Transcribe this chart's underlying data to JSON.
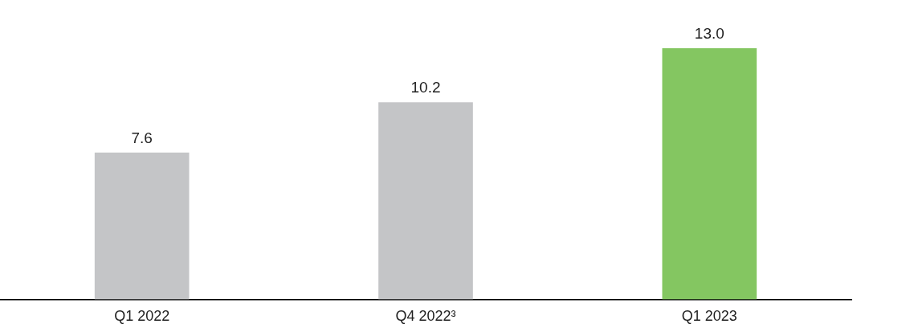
{
  "chart_data": {
    "type": "bar",
    "categories": [
      "Q1 2022",
      "Q4 2022³",
      "Q1 2023"
    ],
    "values": [
      7.6,
      10.2,
      13.0
    ],
    "value_labels": [
      "7.6",
      "10.2",
      "13.0"
    ],
    "colors": [
      "#c4c5c7",
      "#c4c5c7",
      "#84c661"
    ]
  }
}
